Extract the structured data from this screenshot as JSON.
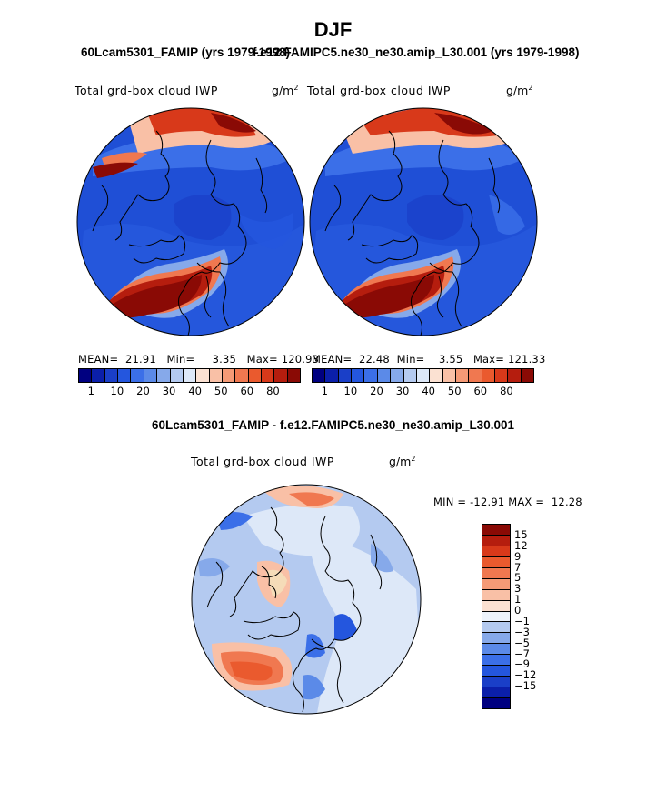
{
  "title": "DJF",
  "left_case": "60Lcam5301_FAMIP (yrs 1979-1998)",
  "right_case": "f.e12.FAMIPC5.ne30_ne30.amip_L30.001 (yrs 1979-1998)",
  "diff_title": "60Lcam5301_FAMIP - f.e12.FAMIPC5.ne30_ne30.amip_L30.001",
  "variable": "Total grd-box cloud IWP",
  "unit": "g/m",
  "unit_exp": "2",
  "panels": {
    "left": {
      "mean_label": "MEAN=",
      "mean": "21.91",
      "min_label": "Min=",
      "min": "3.35",
      "max_label": "Max=",
      "max": "120.93"
    },
    "right": {
      "mean_label": "MEAN=",
      "mean": "22.48",
      "min_label": "Min=",
      "min": "3.55",
      "max_label": "Max=",
      "max": "121.33"
    },
    "diff": {
      "min_label": "MIN =",
      "min": "-12.91",
      "max_label": "MAX =",
      "max": "12.28"
    }
  },
  "colorbar_abs": {
    "colors": [
      "#000080",
      "#0b1faa",
      "#1a3fc8",
      "#2456de",
      "#3b6fe8",
      "#5b8ae8",
      "#86a9ea",
      "#b4caf0",
      "#dde8f8",
      "#fbe1d2",
      "#f9c0a6",
      "#f59a76",
      "#f07850",
      "#ea5a2e",
      "#d8391a",
      "#b51d0e",
      "#8a0a05"
    ],
    "labels": [
      "1",
      "10",
      "20",
      "30",
      "40",
      "50",
      "60",
      "80"
    ]
  },
  "colorbar_diff": {
    "colors": [
      "#8a0a05",
      "#b51d0e",
      "#d8391a",
      "#ea5a2e",
      "#f07850",
      "#f59a76",
      "#f9c0a6",
      "#fbe1d2",
      "#eef4fc",
      "#b4caf0",
      "#86a9ea",
      "#5b8ae8",
      "#3b6fe8",
      "#2456de",
      "#1a3fc8",
      "#0b1faa",
      "#000080"
    ],
    "labels": [
      "15",
      "12",
      "9",
      "7",
      "5",
      "3",
      "1",
      "0",
      "−1",
      "−3",
      "−5",
      "−7",
      "−9",
      "−12",
      "−15"
    ]
  }
}
